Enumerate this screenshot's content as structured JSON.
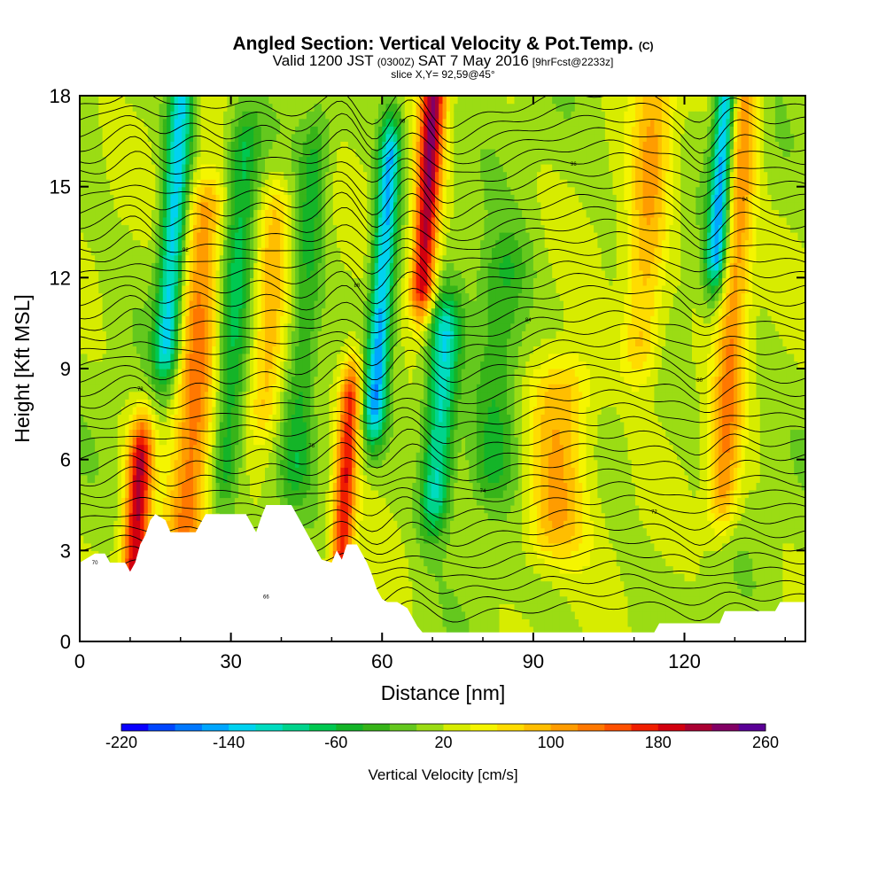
{
  "header": {
    "title": "Angled Section: Vertical Velocity & Pot.Temp.",
    "title_unit": "(C)",
    "valid_prefix": "Valid 1200 JST",
    "valid_utc": "(0300Z)",
    "valid_date": "SAT 7 May 2016",
    "forecast": "[9hrFcst@2233z]",
    "slice": "slice X,Y= 92,59@45°"
  },
  "chart_data": {
    "type": "heatmap",
    "xlabel": "Distance [nm]",
    "ylabel": "Height [Kft MSL]",
    "xlim": [
      0,
      144
    ],
    "ylim": [
      0,
      18
    ],
    "x_ticks": [
      0,
      30,
      60,
      90,
      120
    ],
    "y_ticks": [
      0,
      3,
      6,
      9,
      12,
      15,
      18
    ],
    "x_tick_labels": [
      "0",
      "30",
      "60",
      "90",
      "120"
    ],
    "y_tick_labels": [
      "0",
      "3",
      "6",
      "9",
      "12",
      "15",
      "18"
    ],
    "colorbar": {
      "title": "Vertical Velocity [cm/s]",
      "min": -220,
      "max": 260,
      "step": 20,
      "labels": [
        "-220",
        "-140",
        "-60",
        "20",
        "100",
        "180",
        "260"
      ],
      "colors": [
        "#0a00ff",
        "#0046ff",
        "#0078ff",
        "#00a6ff",
        "#00d2f0",
        "#00dcc0",
        "#00d48c",
        "#00c850",
        "#14b428",
        "#37b419",
        "#64c81e",
        "#9bdc14",
        "#d7ec00",
        "#f5f500",
        "#ffdc00",
        "#ffbe00",
        "#ff9c00",
        "#ff7800",
        "#ff5000",
        "#f01e00",
        "#d2000f",
        "#aa0032",
        "#820064",
        "#5a0096"
      ]
    },
    "vertical_velocity_bands_nm": {
      "updrafts": [
        {
          "x": 12,
          "w": 2.5,
          "amp": 180,
          "z": [
            2.5,
            6
          ]
        },
        {
          "x": 22,
          "w": 4,
          "amp": 110,
          "z": [
            4,
            14
          ]
        },
        {
          "x": 36,
          "w": 3,
          "amp": 70,
          "z": [
            8,
            14
          ]
        },
        {
          "x": 53,
          "w": 2.2,
          "amp": 160,
          "z": [
            3,
            8
          ]
        },
        {
          "x": 66,
          "w": 2.5,
          "amp": 200,
          "z": [
            12,
            18
          ]
        },
        {
          "x": 95,
          "w": 6,
          "amp": 90,
          "z": [
            4,
            8
          ]
        },
        {
          "x": 110,
          "w": 4,
          "amp": 80,
          "z": [
            10,
            18
          ]
        },
        {
          "x": 128,
          "w": 3,
          "amp": 100,
          "z": [
            5,
            18
          ]
        }
      ],
      "downdrafts": [
        {
          "x": 16,
          "w": 2.5,
          "amp": -150,
          "z": [
            10,
            18
          ]
        },
        {
          "x": 29,
          "w": 3,
          "amp": -80,
          "z": [
            6,
            16
          ]
        },
        {
          "x": 43,
          "w": 3,
          "amp": -60,
          "z": [
            6,
            16
          ]
        },
        {
          "x": 58,
          "w": 2.2,
          "amp": -160,
          "z": [
            8,
            16
          ]
        },
        {
          "x": 71,
          "w": 3,
          "amp": -130,
          "z": [
            5,
            10
          ]
        },
        {
          "x": 82,
          "w": 5,
          "amp": -60,
          "z": [
            6,
            12
          ]
        },
        {
          "x": 124,
          "w": 2,
          "amp": -170,
          "z": [
            13,
            18
          ]
        }
      ]
    },
    "terrain_kft": [
      [
        0,
        2.6
      ],
      [
        3,
        2.9
      ],
      [
        5,
        2.9
      ],
      [
        6,
        2.6
      ],
      [
        9,
        2.6
      ],
      [
        10,
        2.3
      ],
      [
        11,
        2.6
      ],
      [
        12,
        3.2
      ],
      [
        13,
        3.5
      ],
      [
        14,
        4.0
      ],
      [
        15,
        4.2
      ],
      [
        17,
        4.0
      ],
      [
        18,
        3.6
      ],
      [
        23,
        3.6
      ],
      [
        24,
        3.9
      ],
      [
        25,
        4.2
      ],
      [
        33,
        4.2
      ],
      [
        34,
        3.9
      ],
      [
        35,
        3.6
      ],
      [
        36,
        4.1
      ],
      [
        37,
        4.5
      ],
      [
        42,
        4.5
      ],
      [
        43,
        4.2
      ],
      [
        44,
        3.9
      ],
      [
        45,
        3.6
      ],
      [
        46,
        3.3
      ],
      [
        47,
        3.0
      ],
      [
        48,
        2.7
      ],
      [
        50,
        2.6
      ],
      [
        51,
        3.0
      ],
      [
        52,
        2.7
      ],
      [
        53,
        3.2
      ],
      [
        55,
        3.2
      ],
      [
        56,
        2.9
      ],
      [
        57,
        2.6
      ],
      [
        58,
        2.2
      ],
      [
        59,
        1.7
      ],
      [
        60,
        1.4
      ],
      [
        61,
        1.3
      ],
      [
        63,
        1.3
      ],
      [
        65,
        1.1
      ],
      [
        66,
        0.8
      ],
      [
        67,
        0.5
      ],
      [
        68,
        0.3
      ],
      [
        91,
        0.3
      ],
      [
        114,
        0.3
      ],
      [
        115,
        0.6
      ],
      [
        127,
        0.6
      ],
      [
        128,
        1.0
      ],
      [
        138,
        1.0
      ],
      [
        139,
        1.3
      ],
      [
        144,
        1.3
      ]
    ],
    "theta_contours": {
      "count": 40,
      "interval_c": 1
    },
    "contour_labels": [
      "66",
      "70",
      "72",
      "74",
      "76",
      "78",
      "80",
      "84",
      "88",
      "92",
      "94",
      "96",
      "98",
      "100"
    ]
  }
}
